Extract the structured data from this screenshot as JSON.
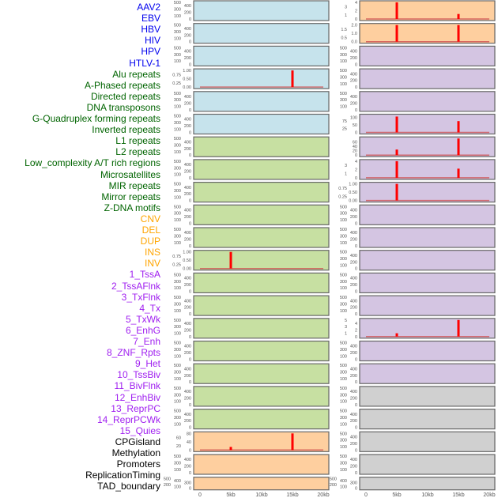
{
  "colors": {
    "virus": "#0000ee",
    "repeat": "#006400",
    "sv": "#ffa500",
    "chromhmm": "#a020f0",
    "other": "#000000",
    "panel_virus": "#c6e3ec",
    "panel_repeat": "#c7e0a2",
    "panel_sv": "#fecf9f",
    "panel_chromhmm": "#d4c5e2",
    "panel_other": "#d0d0d0",
    "peak": "#ff0000"
  },
  "chart_data": {
    "type": "bar",
    "x_ticks": [
      "0",
      "5kb",
      "10kb",
      "15kb",
      "20kb"
    ],
    "xlim_kb": [
      0,
      20
    ],
    "default_yticks": [
      "0",
      "100",
      "200",
      "300",
      "400",
      "500"
    ],
    "tracks": [
      {
        "name": "AAV2",
        "cat": "virus"
      },
      {
        "name": "EBV",
        "cat": "virus"
      },
      {
        "name": "HBV",
        "cat": "virus"
      },
      {
        "name": "HIV",
        "cat": "virus",
        "ymax": 1,
        "yticks": [
          "0.00",
          "0.25",
          "0.50",
          "0.75",
          "1.00"
        ],
        "peaks": [
          [
            15,
            1
          ]
        ]
      },
      {
        "name": "HPV",
        "cat": "virus"
      },
      {
        "name": "HTLV-1",
        "cat": "virus"
      },
      {
        "name": "Alu repeats",
        "cat": "repeat"
      },
      {
        "name": "A-Phased repeats",
        "cat": "repeat"
      },
      {
        "name": "Directed repeats",
        "cat": "repeat"
      },
      {
        "name": "DNA transposons",
        "cat": "repeat"
      },
      {
        "name": "G-Quadruplex forming repeats",
        "cat": "repeat"
      },
      {
        "name": "Inverted repeats",
        "cat": "repeat",
        "ymax": 1,
        "yticks": [
          "0.00",
          "0.25",
          "0.50",
          "0.75",
          "1.00"
        ],
        "peaks": [
          [
            5,
            1
          ]
        ]
      },
      {
        "name": "L1 repeats",
        "cat": "repeat"
      },
      {
        "name": "L2 repeats",
        "cat": "repeat"
      },
      {
        "name": "Low_complexity A/T rich regions",
        "cat": "repeat"
      },
      {
        "name": "Microsatellites",
        "cat": "repeat"
      },
      {
        "name": "MIR repeats",
        "cat": "repeat"
      },
      {
        "name": "Mirror repeats",
        "cat": "repeat"
      },
      {
        "name": "Z-DNA motifs",
        "cat": "repeat"
      },
      {
        "name": "CNV",
        "cat": "sv",
        "ymax": 80,
        "yticks": [
          "0",
          "20",
          "40",
          "60",
          "80"
        ],
        "peaks": [
          [
            5,
            15
          ],
          [
            15,
            80
          ]
        ]
      },
      {
        "name": "DEL",
        "cat": "sv"
      },
      {
        "name": "DUP",
        "cat": "sv",
        "compact": true
      },
      {
        "name": "INS",
        "cat": "sv",
        "ymax": 4,
        "yticks": [
          "0",
          "1",
          "2",
          "3",
          "4"
        ],
        "peaks": [
          [
            5,
            4
          ],
          [
            15,
            1.2
          ]
        ]
      },
      {
        "name": "INV",
        "cat": "sv",
        "ymax": 2,
        "yticks": [
          "0.0",
          "0.5",
          "1.0",
          "1.5",
          "2.0"
        ],
        "peaks": [
          [
            5,
            2
          ],
          [
            15,
            2
          ]
        ]
      },
      {
        "name": "1_TssA",
        "cat": "chromhmm"
      },
      {
        "name": "2_TssAFlnk",
        "cat": "chromhmm"
      },
      {
        "name": "3_TxFlnk",
        "cat": "chromhmm"
      },
      {
        "name": "4_Tx",
        "cat": "chromhmm",
        "ymax": 110,
        "yticks": [
          "0",
          "25",
          "50",
          "75",
          "100"
        ],
        "peaks": [
          [
            5,
            105
          ],
          [
            15,
            75
          ]
        ]
      },
      {
        "name": "5_TxWk",
        "cat": "chromhmm",
        "ymax": 75,
        "yticks": [
          "0",
          "20",
          "40",
          "60"
        ],
        "peaks": [
          [
            5,
            25
          ],
          [
            15,
            75
          ]
        ]
      },
      {
        "name": "6_EnhG",
        "cat": "chromhmm",
        "ymax": 4,
        "yticks": [
          "0",
          "1",
          "2",
          "3",
          "4"
        ],
        "peaks": [
          [
            5,
            4
          ],
          [
            15,
            2.2
          ]
        ]
      },
      {
        "name": "7_Enh",
        "cat": "chromhmm",
        "ymax": 1,
        "yticks": [
          "0.00",
          "0.25",
          "0.50",
          "0.75",
          "1.00"
        ],
        "peaks": [
          [
            5,
            1
          ]
        ]
      },
      {
        "name": "8_ZNF_Rpts",
        "cat": "chromhmm"
      },
      {
        "name": "9_Het",
        "cat": "chromhmm"
      },
      {
        "name": "10_TssBiv",
        "cat": "chromhmm"
      },
      {
        "name": "11_BivFlnk",
        "cat": "chromhmm"
      },
      {
        "name": "12_EnhBiv",
        "cat": "chromhmm"
      },
      {
        "name": "13_ReprPC",
        "cat": "chromhmm",
        "ymax": 5,
        "yticks": [
          "0",
          "1",
          "2",
          "3",
          "4",
          "5"
        ],
        "peaks": [
          [
            5,
            1
          ],
          [
            15,
            5
          ]
        ]
      },
      {
        "name": "14_ReprPCWk",
        "cat": "chromhmm"
      },
      {
        "name": "15_Quies",
        "cat": "chromhmm"
      },
      {
        "name": "CPGisland",
        "cat": "other"
      },
      {
        "name": "Methylation",
        "cat": "other"
      },
      {
        "name": "Promoters",
        "cat": "other"
      },
      {
        "name": "ReplicationTiming",
        "cat": "other"
      },
      {
        "name": "TAD_boundary",
        "cat": "other",
        "compact": true
      }
    ]
  }
}
